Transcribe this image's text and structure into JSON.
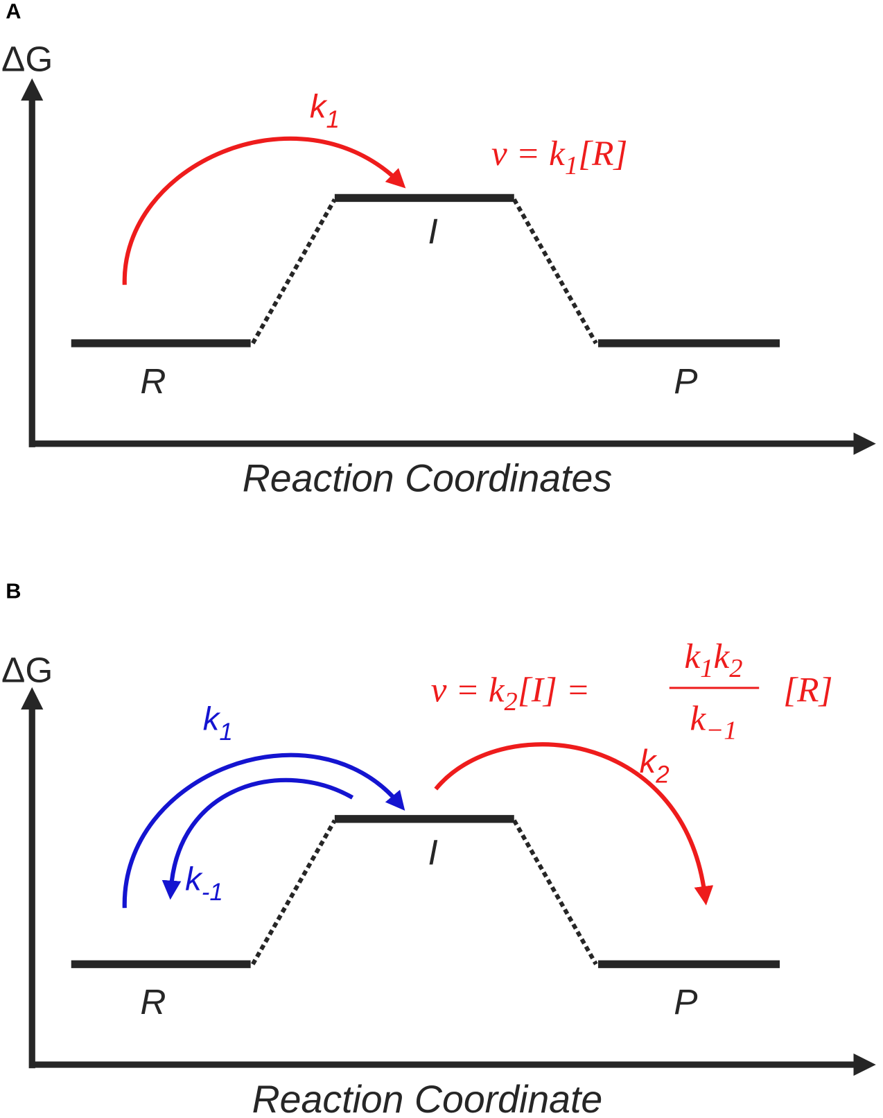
{
  "panels": [
    {
      "label": "A",
      "y_axis_label": "ΔG",
      "x_axis_label": "Reaction Coordinates",
      "states": [
        "R",
        "I",
        "P"
      ],
      "rates": [
        {
          "symbol": "k",
          "sub": "1"
        }
      ],
      "equation": {
        "left": [
          {
            "text": "v = k"
          },
          {
            "text": "1",
            "sub": true
          },
          {
            "text": "[R]"
          }
        ]
      }
    },
    {
      "label": "B",
      "y_axis_label": "ΔG",
      "x_axis_label": "Reaction Coordinate",
      "states": [
        "R",
        "I",
        "P"
      ],
      "rates": [
        {
          "symbol": "k",
          "sub": "1"
        },
        {
          "symbol": "k",
          "sub": "-1"
        },
        {
          "symbol": "k",
          "sub": "2"
        }
      ],
      "equation": {
        "left": [
          {
            "text": "v = k"
          },
          {
            "text": "2",
            "sub": true
          },
          {
            "text": "[I] ="
          }
        ],
        "numerator": [
          {
            "text": "k"
          },
          {
            "text": "1",
            "sub": true
          },
          {
            "text": "k"
          },
          {
            "text": "2",
            "sub": true
          }
        ],
        "denominator": [
          {
            "text": "k"
          },
          {
            "text": "−1",
            "sub": true
          }
        ],
        "right": [
          {
            "text": "[R]"
          }
        ]
      }
    }
  ]
}
